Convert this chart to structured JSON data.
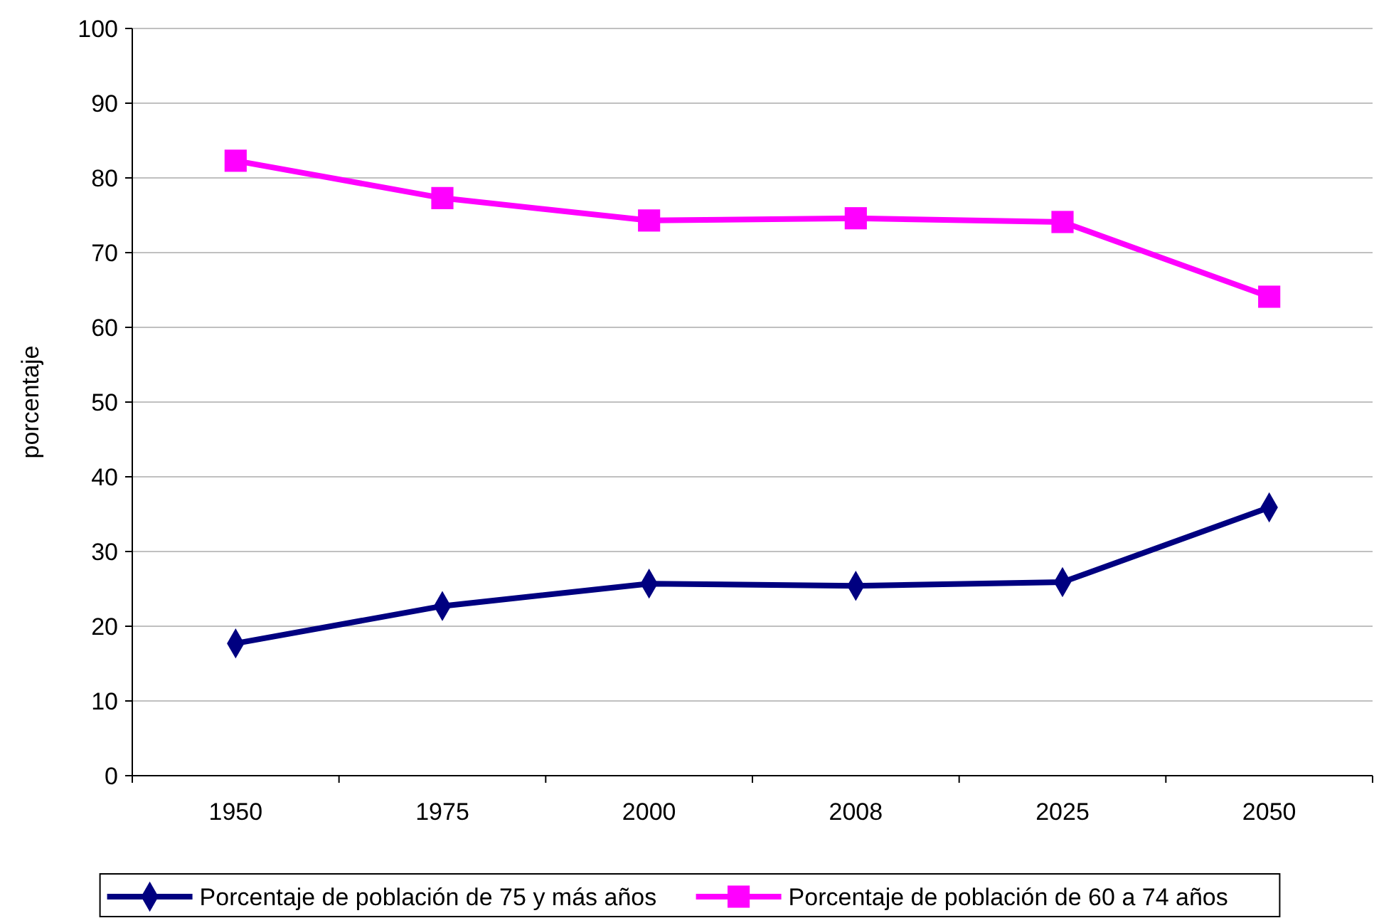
{
  "chart_data": {
    "type": "line",
    "ylabel": "porcentaje",
    "categories": [
      "1950",
      "1975",
      "2000",
      "2008",
      "2025",
      "2050"
    ],
    "series": [
      {
        "name": "Porcentaje de población de 75 y más años",
        "color": "#000080",
        "marker": "diamond",
        "values": [
          17.7,
          22.7,
          25.7,
          25.4,
          25.9,
          35.9
        ]
      },
      {
        "name": "Porcentaje de población de 60 a 74 años",
        "color": "#ff00ff",
        "marker": "square",
        "values": [
          82.3,
          77.3,
          74.3,
          74.6,
          74.1,
          64.1
        ]
      }
    ],
    "ylim": [
      0,
      100
    ],
    "yticks": [
      0,
      10,
      20,
      30,
      40,
      50,
      60,
      70,
      80,
      90,
      100
    ],
    "grid": "y",
    "legend": "bottom",
    "line_style": "solid"
  }
}
